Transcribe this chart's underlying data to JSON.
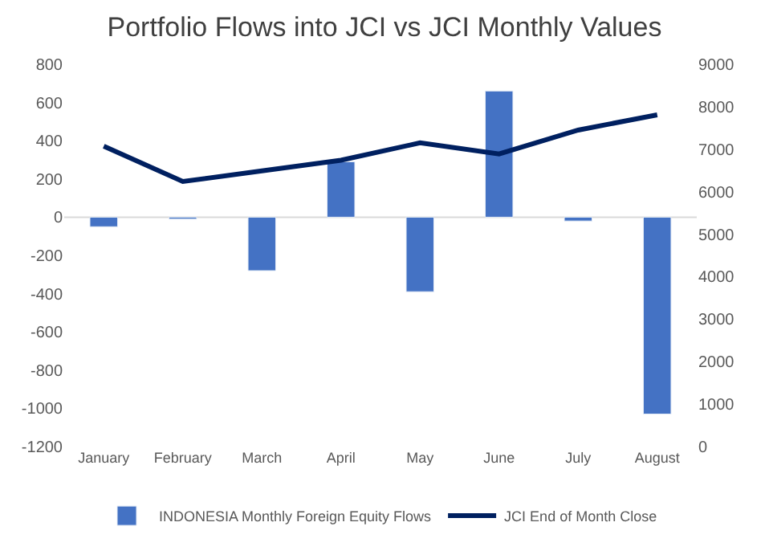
{
  "chart_data": {
    "type": "bar",
    "title": "Portfolio Flows into JCI vs JCI Monthly Values",
    "categories": [
      "January",
      "February",
      "March",
      "April",
      "May",
      "June",
      "July",
      "August"
    ],
    "series": [
      {
        "name": "INDONESIA Monthly Foreign Equity Flows",
        "color": "#4472c4",
        "values": [
          -50,
          -10,
          -280,
          290,
          -390,
          660,
          -20,
          -1030
        ]
      },
      {
        "name": "JCI End of Month Close",
        "type": "line",
        "axis": "y2",
        "color": "#002060",
        "values": [
          7070,
          6240,
          6490,
          6740,
          7150,
          6890,
          7450,
          7810
        ]
      }
    ],
    "ylim": [
      -1200,
      800
    ],
    "yticks": [
      -1200,
      -1000,
      -800,
      -600,
      -400,
      -200,
      0,
      200,
      400,
      600,
      800
    ],
    "y2lim": [
      0,
      9000
    ],
    "y2ticks": [
      0,
      1000,
      2000,
      3000,
      4000,
      5000,
      6000,
      7000,
      8000,
      9000
    ],
    "ref_lines": [
      {
        "axis": "y",
        "value": 0,
        "color": "#d9d9d9"
      }
    ],
    "grid": false,
    "legend": "bottom",
    "marker": "none"
  }
}
